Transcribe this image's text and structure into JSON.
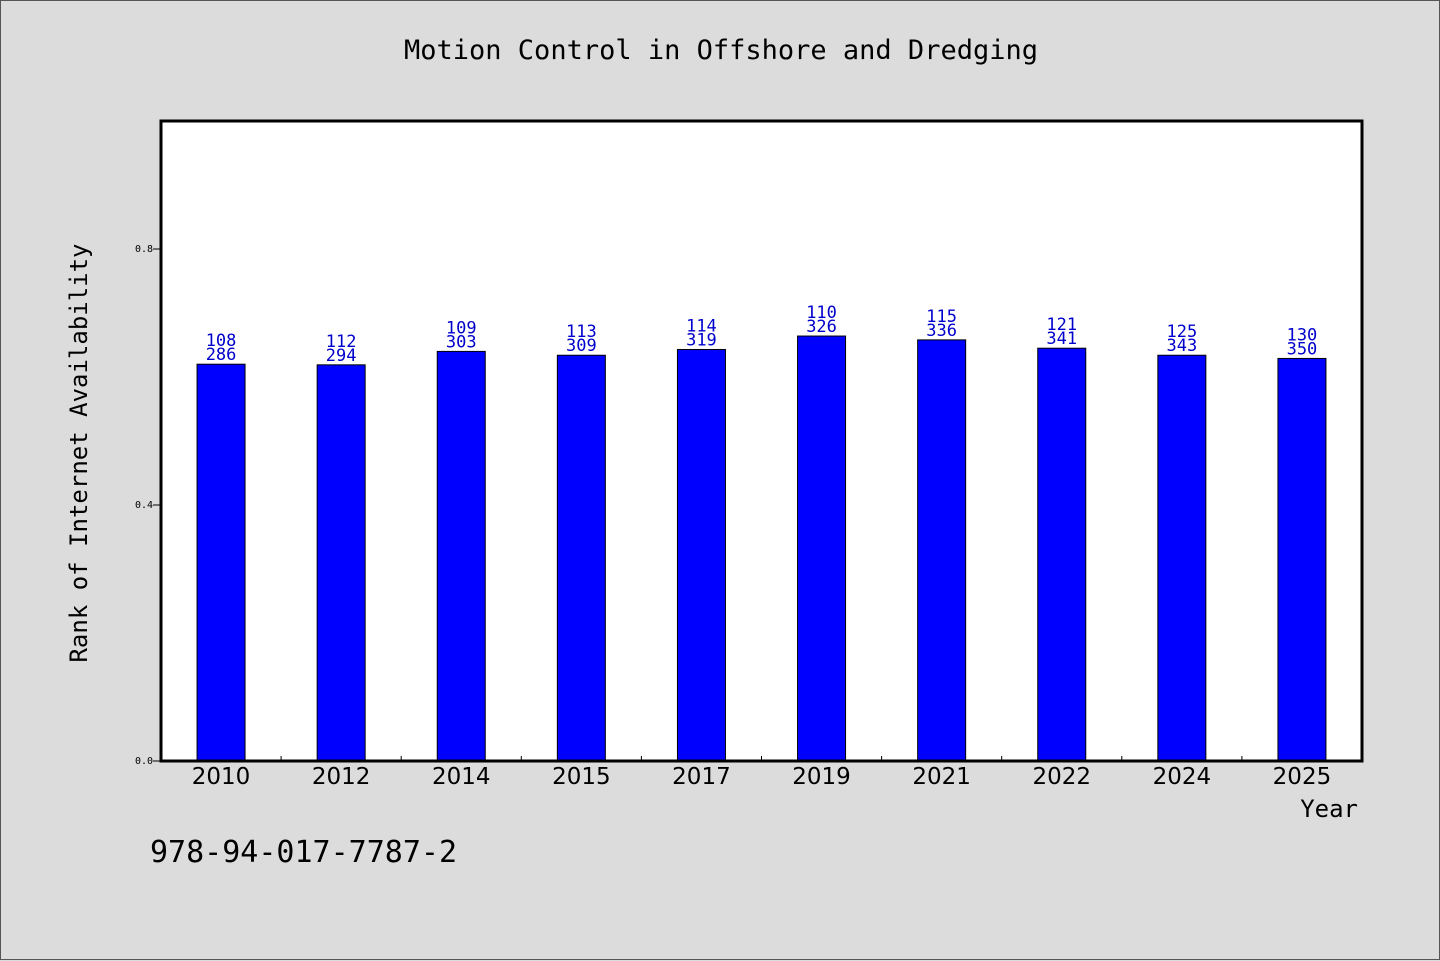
{
  "chart_data": {
    "type": "bar",
    "title": "Motion Control in Offshore and Dredging",
    "xlabel": "Year",
    "ylabel": "Rank of Internet Availability",
    "categories": [
      "2010",
      "2012",
      "2014",
      "2015",
      "2017",
      "2019",
      "2021",
      "2022",
      "2024",
      "2025"
    ],
    "values": [
      0.62,
      0.619,
      0.64,
      0.634,
      0.643,
      0.664,
      0.658,
      0.645,
      0.634,
      0.629
    ],
    "data_labels_top": [
      "108",
      "112",
      "109",
      "113",
      "114",
      "110",
      "115",
      "121",
      "125",
      "130"
    ],
    "data_labels_bottom": [
      "286",
      "294",
      "303",
      "309",
      "319",
      "326",
      "336",
      "341",
      "343",
      "350"
    ],
    "ylim": [
      0,
      1.0
    ],
    "yticks": [
      0.0,
      0.4,
      0.8
    ],
    "ytick_labels": [
      "0.0",
      "0.4",
      "0.8"
    ],
    "grid": false,
    "bar_color": "#0000ff",
    "label_color": "#0000cc"
  },
  "footer": {
    "isbn": "978-94-017-7787-2"
  }
}
